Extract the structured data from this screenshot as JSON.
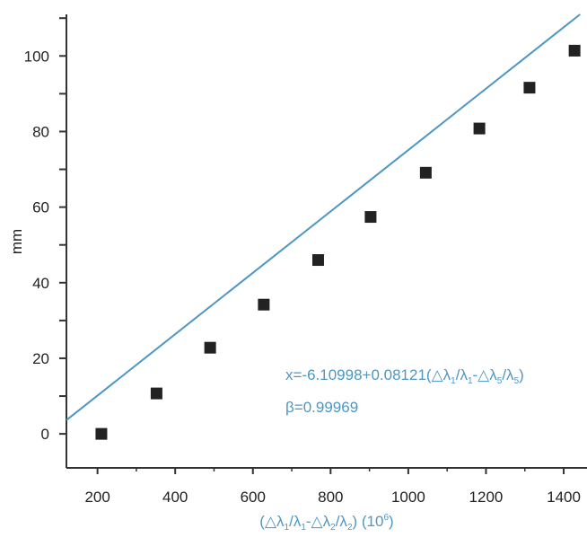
{
  "chart_data": {
    "type": "scatter",
    "title": "",
    "xlabel": "(△λ1/λ1-△λ2/λ2) (10⁶)",
    "ylabel": "mm",
    "xlim": [
      120,
      1460
    ],
    "ylim": [
      -9,
      111
    ],
    "x_ticks": [
      200,
      400,
      600,
      800,
      1000,
      1200,
      1400
    ],
    "y_ticks": [
      0,
      20,
      40,
      60,
      80,
      100
    ],
    "grid": false,
    "series": [
      {
        "name": "",
        "marker": "square",
        "color": "#222222",
        "x": [
          210,
          352,
          490,
          628,
          768,
          903,
          1045,
          1183,
          1312,
          1428
        ],
        "y": [
          0,
          10.7,
          22.8,
          34.2,
          46.0,
          57.4,
          69.1,
          80.8,
          91.6,
          101.4
        ]
      }
    ],
    "fit_line": {
      "intercept": -6.10998,
      "slope": 0.08121,
      "color": "#4e97c4"
    },
    "annotations": {
      "equation": "x=-6.10998+0.08121(△λ1/λ1-△λ5/λ5)",
      "beta": "β=0.99969",
      "color": "#4e97c4"
    }
  }
}
